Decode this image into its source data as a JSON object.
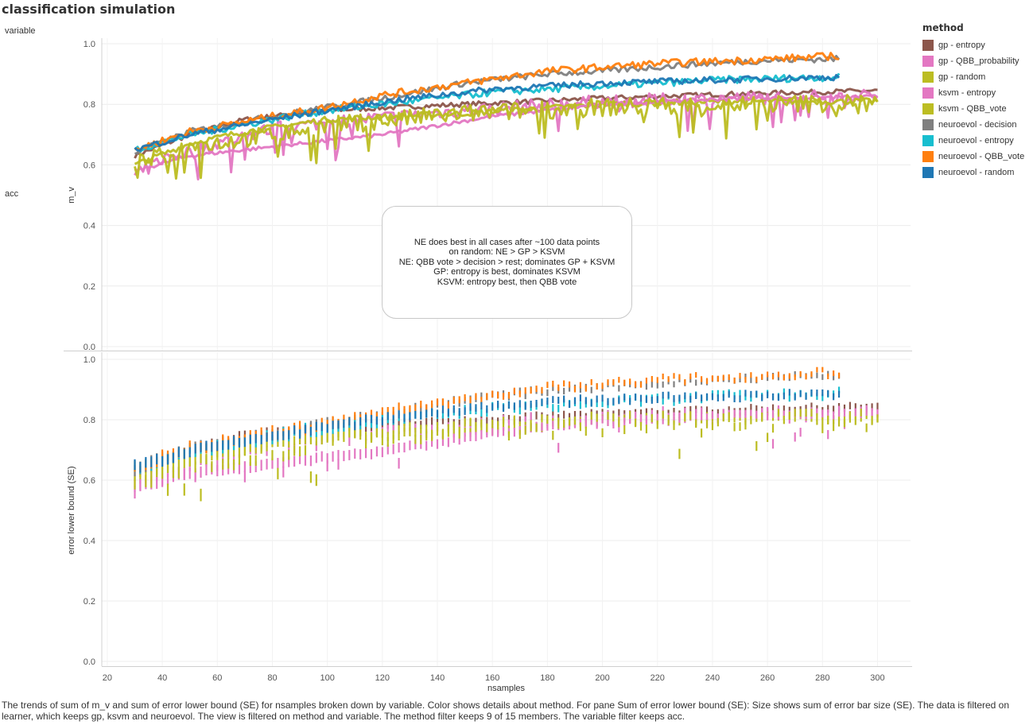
{
  "title": "classification simulation",
  "variable_header": "variable",
  "row_label": "acc",
  "legend": {
    "title": "method",
    "items": [
      {
        "label": "gp - entropy",
        "color": "#8c564b"
      },
      {
        "label": "gp - QBB_probability",
        "color": "#e377c2"
      },
      {
        "label": "gp - random",
        "color": "#bcbd22"
      },
      {
        "label": "ksvm - entropy",
        "color": "#e377c2"
      },
      {
        "label": "ksvm - QBB_vote",
        "color": "#bcbd22"
      },
      {
        "label": "neuroevol - decision",
        "color": "#7f7f7f"
      },
      {
        "label": "neuroevol - entropy",
        "color": "#17becf"
      },
      {
        "label": "neuroevol - QBB_vote",
        "color": "#ff7f0e"
      },
      {
        "label": "neuroevol - random",
        "color": "#1f77b4"
      }
    ]
  },
  "annotation": [
    "NE does best in all cases after ~100 data points",
    "on random: NE > GP > KSVM",
    "NE: QBB vote > decision > rest; dominates GP + KSVM",
    "GP: entropy is best, dominates KSVM",
    "KSVM: entropy best, then QBB vote"
  ],
  "caption": "The trends of sum of m_v and sum of error lower bound (SE) for nsamples broken down by variable.  Color shows details about method.  For pane Sum of error lower bound (SE):  Size shows sum of error bar size (SE). The data is filtered on learner, which keeps gp, ksvm and neuroevol. The view is filtered on method and variable. The method filter keeps 9 of 15 members. The variable filter keeps acc.",
  "chart_data": {
    "type": "line",
    "xlabel": "nsamples",
    "x_ticks": [
      20,
      40,
      60,
      80,
      100,
      120,
      140,
      160,
      180,
      200,
      220,
      240,
      260,
      280,
      300
    ],
    "xlim": [
      18,
      312
    ],
    "panes": [
      {
        "ylabel": "m_v",
        "ylim": [
          0,
          1.0
        ],
        "y_ticks": [
          "0.0",
          "0.2",
          "0.4",
          "0.6",
          "0.8",
          "1.0"
        ],
        "mark": "line"
      },
      {
        "ylabel": "error lower bound (SE)",
        "ylim": [
          0,
          1.0
        ],
        "y_ticks": [
          "0.0",
          "0.2",
          "0.4",
          "0.6",
          "0.8",
          "1.0"
        ],
        "mark": "error-bar"
      }
    ],
    "x_start": 30,
    "series": [
      {
        "name": "gp - entropy",
        "color": "#8c564b",
        "x_end": 300,
        "points": [
          [
            30,
            0.63
          ],
          [
            50,
            0.7
          ],
          [
            70,
            0.75
          ],
          [
            100,
            0.78
          ],
          [
            150,
            0.8
          ],
          [
            200,
            0.82
          ],
          [
            250,
            0.835
          ],
          [
            300,
            0.845
          ]
        ],
        "noise": 0.008
      },
      {
        "name": "gp - QBB_probability",
        "color": "#e377c2",
        "x_end": 300,
        "points": [
          [
            30,
            0.56
          ],
          [
            40,
            0.62
          ],
          [
            60,
            0.67
          ],
          [
            80,
            0.72
          ],
          [
            100,
            0.74
          ],
          [
            150,
            0.78
          ],
          [
            200,
            0.81
          ],
          [
            250,
            0.82
          ],
          [
            300,
            0.83
          ]
        ],
        "noise": 0.022
      },
      {
        "name": "gp - random",
        "color": "#bcbd22",
        "x_end": 300,
        "points": [
          [
            30,
            0.6
          ],
          [
            50,
            0.67
          ],
          [
            70,
            0.71
          ],
          [
            100,
            0.75
          ],
          [
            150,
            0.77
          ],
          [
            200,
            0.8
          ],
          [
            250,
            0.81
          ],
          [
            300,
            0.81
          ]
        ],
        "noise": 0.01
      },
      {
        "name": "ksvm - entropy",
        "color": "#e377c2",
        "x_end": 300,
        "points": [
          [
            30,
            0.58
          ],
          [
            50,
            0.63
          ],
          [
            80,
            0.66
          ],
          [
            90,
            0.67
          ],
          [
            120,
            0.7
          ],
          [
            160,
            0.76
          ],
          [
            200,
            0.8
          ],
          [
            250,
            0.82
          ],
          [
            300,
            0.825
          ]
        ],
        "noise": 0.006
      },
      {
        "name": "ksvm - QBB_vote",
        "color": "#bcbd22",
        "x_end": 300,
        "points": [
          [
            30,
            0.6
          ],
          [
            50,
            0.66
          ],
          [
            80,
            0.7
          ],
          [
            100,
            0.73
          ],
          [
            150,
            0.77
          ],
          [
            200,
            0.79
          ],
          [
            250,
            0.8
          ],
          [
            300,
            0.805
          ]
        ],
        "noise": 0.03
      },
      {
        "name": "neuroevol - decision",
        "color": "#7f7f7f",
        "x_end": 286,
        "points": [
          [
            30,
            0.64
          ],
          [
            50,
            0.71
          ],
          [
            80,
            0.76
          ],
          [
            100,
            0.79
          ],
          [
            120,
            0.82
          ],
          [
            150,
            0.87
          ],
          [
            180,
            0.9
          ],
          [
            200,
            0.91
          ],
          [
            230,
            0.93
          ],
          [
            260,
            0.945
          ],
          [
            286,
            0.95
          ]
        ],
        "noise": 0.01
      },
      {
        "name": "neuroevol - entropy",
        "color": "#17becf",
        "x_end": 286,
        "points": [
          [
            30,
            0.65
          ],
          [
            50,
            0.7
          ],
          [
            80,
            0.75
          ],
          [
            100,
            0.78
          ],
          [
            130,
            0.81
          ],
          [
            160,
            0.84
          ],
          [
            200,
            0.86
          ],
          [
            240,
            0.88
          ],
          [
            286,
            0.89
          ]
        ],
        "noise": 0.012
      },
      {
        "name": "neuroevol - QBB_vote",
        "color": "#ff7f0e",
        "x_end": 286,
        "points": [
          [
            30,
            0.65
          ],
          [
            50,
            0.71
          ],
          [
            80,
            0.76
          ],
          [
            100,
            0.79
          ],
          [
            120,
            0.83
          ],
          [
            150,
            0.87
          ],
          [
            180,
            0.91
          ],
          [
            220,
            0.935
          ],
          [
            250,
            0.945
          ],
          [
            286,
            0.96
          ]
        ],
        "noise": 0.012
      },
      {
        "name": "neuroevol - random",
        "color": "#1f77b4",
        "x_end": 286,
        "points": [
          [
            30,
            0.65
          ],
          [
            50,
            0.7
          ],
          [
            80,
            0.75
          ],
          [
            100,
            0.78
          ],
          [
            130,
            0.82
          ],
          [
            160,
            0.85
          ],
          [
            200,
            0.87
          ],
          [
            240,
            0.88
          ],
          [
            286,
            0.89
          ]
        ],
        "noise": 0.01
      }
    ],
    "grid": true,
    "legend_position": "right"
  }
}
